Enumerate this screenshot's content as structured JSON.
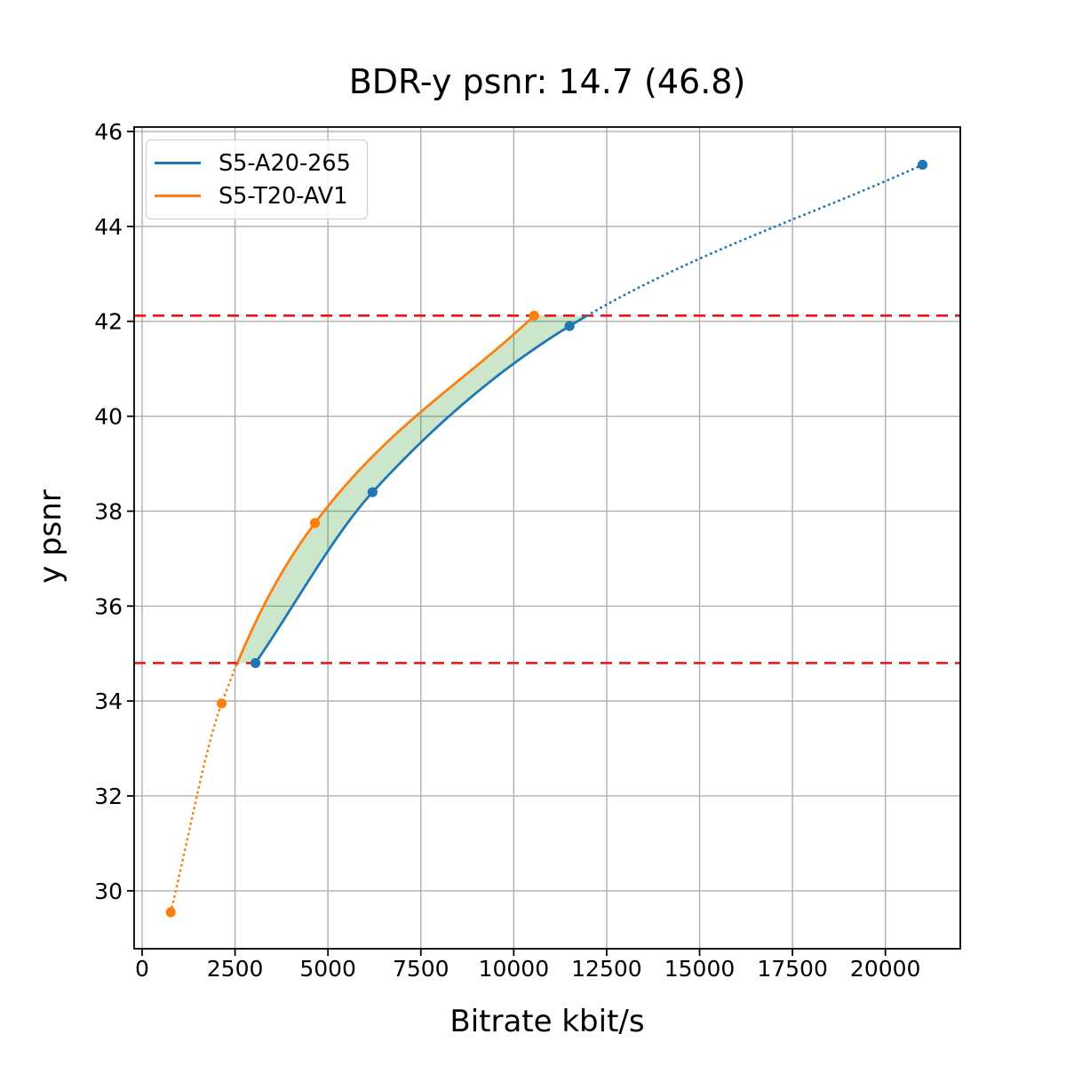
{
  "figure": {
    "title": "BDR-y psnr: 14.7 (46.8)",
    "xlabel": "Bitrate kbit/s",
    "ylabel": "y psnr",
    "background": "#ffffff"
  },
  "chart_data": {
    "type": "line",
    "title": "BDR-y psnr: 14.7 (46.8)",
    "bdr_value": "14.7",
    "bdr_reference": "46.8",
    "xlabel": "Bitrate kbit/s",
    "ylabel": "y psnr",
    "xlim": [
      -215,
      22015
    ],
    "ylim": [
      28.78,
      46.094
    ],
    "xtick_values": [
      0,
      2500,
      5000,
      7500,
      10000,
      12500,
      15000,
      17500,
      20000
    ],
    "xtick_labels": [
      "0",
      "2500",
      "5000",
      "7500",
      "10000",
      "12500",
      "15000",
      "17500",
      "20000"
    ],
    "ytick_values": [
      30,
      32,
      34,
      36,
      38,
      40,
      42,
      44,
      46
    ],
    "ytick_labels": [
      "30",
      "32",
      "34",
      "36",
      "38",
      "40",
      "42",
      "44",
      "46"
    ],
    "grid": true,
    "grid_color": "#b0b0b0",
    "spine_color": "#000000",
    "legend_position": "upper left",
    "series": [
      {
        "name": "S5-A20-265",
        "color": "#1f77b4",
        "points": [
          [
            3050,
            34.8
          ],
          [
            6200,
            38.4
          ],
          [
            11500,
            41.9
          ],
          [
            21000,
            45.3
          ]
        ],
        "style_inside_bounds": "solid",
        "style_outside_bounds": "dotted"
      },
      {
        "name": "S5-T20-AV1",
        "color": "#ff7f0e",
        "points": [
          [
            770,
            29.55
          ],
          [
            2140,
            33.95
          ],
          [
            4650,
            37.75
          ],
          [
            10550,
            42.12
          ]
        ],
        "style_inside_bounds": "solid",
        "style_outside_bounds": "dotted"
      }
    ],
    "bd_interval": {
      "lower_psnr": 34.8,
      "upper_psnr": 42.12,
      "line_color": "#ee1111",
      "line_style": "dashed"
    },
    "shaded_region": {
      "color": "#008000",
      "opacity": 0.2,
      "description": "area between curves from lower_psnr to upper_psnr"
    }
  }
}
